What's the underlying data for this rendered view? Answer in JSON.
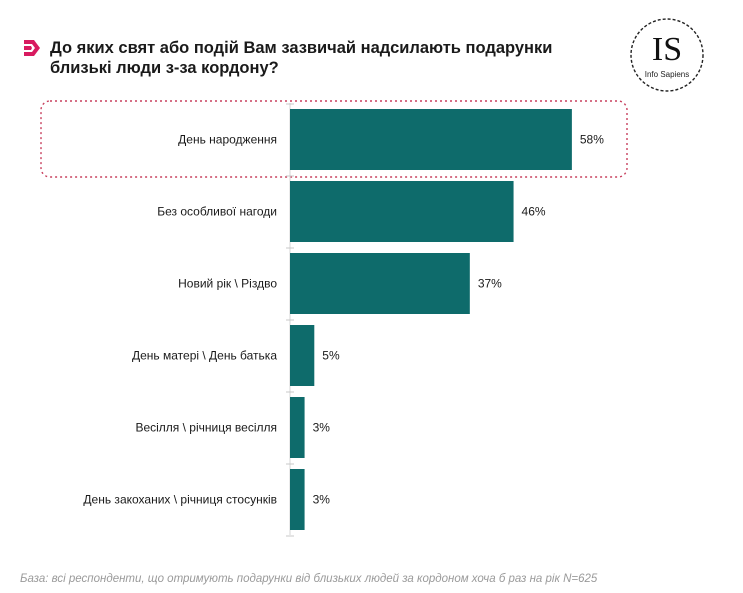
{
  "header": {
    "title": "До яких свят або подій Вам зазвичай надсилають подарунки близькі люди з-за кордону?",
    "logo_text": "IS",
    "logo_subtext": "Info Sapiens"
  },
  "colors": {
    "bar": "#0e6b6b",
    "accent": "#d81b60",
    "highlight_border": "#c8405e"
  },
  "chart_data": {
    "type": "bar",
    "orientation": "horizontal",
    "categories": [
      "День народження",
      "Без особливої нагоди",
      "Новий рік \\ Різдво",
      "День матері \\ День батька",
      "Весілля \\ річниця весілля",
      "День закоханих \\ річниця стосунків"
    ],
    "values": [
      58,
      46,
      37,
      5,
      3,
      3
    ],
    "value_labels": [
      "58%",
      "46%",
      "37%",
      "5%",
      "3%",
      "3%"
    ],
    "unit": "%",
    "highlighted_category": "День народження",
    "grid": false,
    "legend": "none"
  },
  "footnote": "База: всі респонденти, що отримують подарунки від близьких людей за кордоном хоча б раз на рік N=625"
}
